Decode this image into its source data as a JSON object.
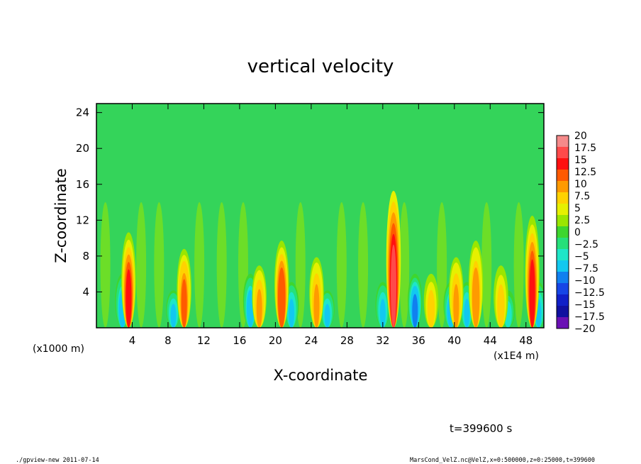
{
  "footer": {
    "left": "./gpview-new  2011-07-14",
    "right": "MarsCond_VelZ.nc@VelZ,x=0:500000,z=0:25000,t=399600"
  },
  "chart_data": {
    "type": "heatmap",
    "title": "vertical velocity",
    "xlabel": "X-coordinate",
    "ylabel": "Z-coordinate",
    "x_unit_left": "(x1000 m)",
    "x_unit_right": "(x1E4 m)",
    "time_label": "t=399600 s",
    "xlim": [
      0,
      50
    ],
    "ylim": [
      0,
      25
    ],
    "x_ticks": [
      4,
      8,
      12,
      16,
      20,
      24,
      28,
      32,
      36,
      40,
      44,
      48
    ],
    "y_ticks": [
      4,
      8,
      12,
      16,
      20,
      24
    ],
    "grid": false,
    "colorbar": {
      "position": "right",
      "levels": [
        "20",
        "17.5",
        "15",
        "12.5",
        "10",
        "7.5",
        "5",
        "2.5",
        "0",
        "-2.5",
        "-5",
        "-7.5",
        "-10",
        "-12.5",
        "-15",
        "-17.5",
        "-20"
      ],
      "colors": [
        "#f58a8a",
        "#ff4a4a",
        "#ff1010",
        "#ff5a00",
        "#ff9a00",
        "#ffd200",
        "#e6f000",
        "#9ae600",
        "#3ed62e",
        "#26e07a",
        "#1ee6c8",
        "#12c8f0",
        "#1080f0",
        "#1646e6",
        "#1020c8",
        "#1010a0",
        "#6a10b4"
      ]
    },
    "updrafts": [
      {
        "x": 3.6,
        "top": 11,
        "peak": 13
      },
      {
        "x": 9.8,
        "top": 9,
        "peak": 10
      },
      {
        "x": 18.2,
        "top": 7,
        "peak": 8
      },
      {
        "x": 20.7,
        "top": 10,
        "peak": 12
      },
      {
        "x": 24.6,
        "top": 8,
        "peak": 8
      },
      {
        "x": 33.2,
        "top": 16,
        "peak": 15
      },
      {
        "x": 37.4,
        "top": 6,
        "peak": 6
      },
      {
        "x": 40.2,
        "top": 8,
        "peak": 8
      },
      {
        "x": 42.4,
        "top": 10,
        "peak": 9
      },
      {
        "x": 45.2,
        "top": 7,
        "peak": 7
      },
      {
        "x": 48.7,
        "top": 13,
        "peak": 14
      }
    ],
    "downdrafts": [
      {
        "x": 2.9,
        "top": 6,
        "peak": -10
      },
      {
        "x": 8.6,
        "top": 4,
        "peak": -8
      },
      {
        "x": 17.2,
        "top": 6,
        "peak": -10
      },
      {
        "x": 21.8,
        "top": 5,
        "peak": -8
      },
      {
        "x": 25.8,
        "top": 4,
        "peak": -8
      },
      {
        "x": 32.0,
        "top": 5,
        "peak": -8
      },
      {
        "x": 35.6,
        "top": 6,
        "peak": -12
      },
      {
        "x": 39.6,
        "top": 5,
        "peak": -10
      },
      {
        "x": 41.4,
        "top": 5,
        "peak": -8
      },
      {
        "x": 46.0,
        "top": 4,
        "peak": -7
      },
      {
        "x": 49.4,
        "top": 5,
        "peak": -9
      }
    ]
  }
}
